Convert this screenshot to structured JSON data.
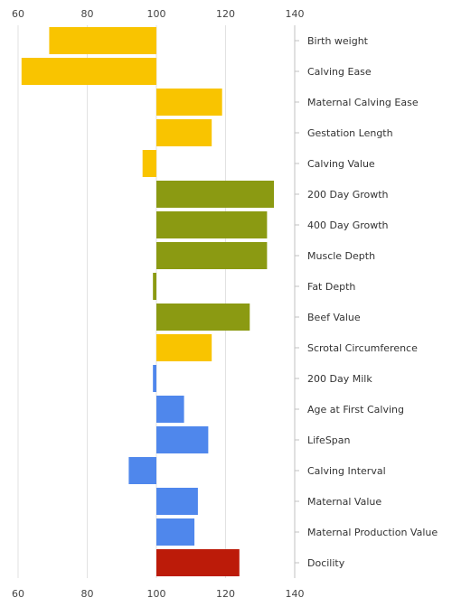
{
  "chart_data": {
    "type": "bar",
    "orientation": "horizontal",
    "baseline": 100,
    "xlim": [
      60,
      140
    ],
    "xticks": [
      60,
      80,
      100,
      120,
      140
    ],
    "xtick_labels": [
      "60",
      "80",
      "100",
      "120",
      "140"
    ],
    "grid": true,
    "axis_labels_top_and_bottom": true,
    "group_colors": {
      "calving": "#f9c400",
      "growth": "#8b9a12",
      "maternal": "#4f87ec",
      "temperament": "#bc1b09"
    },
    "categories": [
      "Birth weight",
      "Calving Ease",
      "Maternal Calving Ease",
      "Gestation Length",
      "Calving Value",
      "200 Day Growth",
      "400 Day Growth",
      "Muscle Depth",
      "Fat Depth",
      "Beef Value",
      "Scrotal Circumference",
      "200 Day Milk",
      "Age at First Calving",
      "LifeSpan",
      "Calving Interval",
      "Maternal Value",
      "Maternal Production Value",
      "Docility"
    ],
    "values": [
      69,
      61,
      119,
      116,
      96,
      134,
      132,
      132,
      99,
      127,
      116,
      99,
      108,
      115,
      92,
      112,
      111,
      124
    ],
    "groups": [
      "calving",
      "calving",
      "calving",
      "calving",
      "calving",
      "growth",
      "growth",
      "growth",
      "growth",
      "growth",
      "calving",
      "maternal",
      "maternal",
      "maternal",
      "maternal",
      "maternal",
      "maternal",
      "temperament"
    ]
  }
}
